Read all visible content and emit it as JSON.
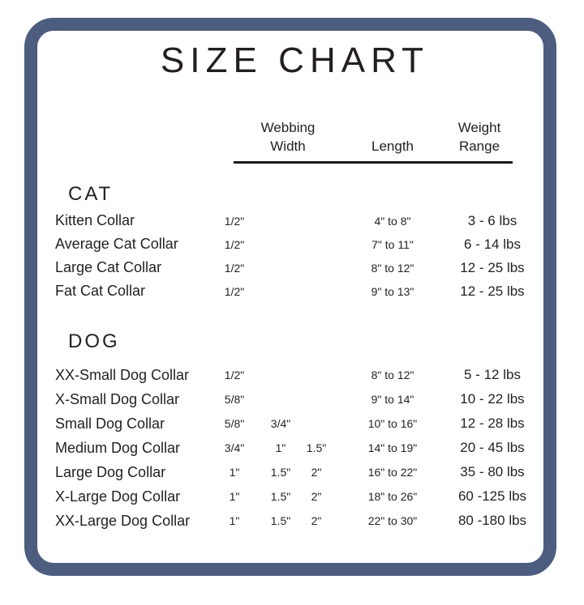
{
  "title": "SIZE CHART",
  "colors": {
    "border": "#4d5d80",
    "text": "#231f20",
    "background": "#ffffff"
  },
  "columns": {
    "webbing_width": [
      "Webbing",
      "Width"
    ],
    "length": "Length",
    "weight_range": [
      "Weight",
      "Range"
    ]
  },
  "sections": [
    {
      "name": "CAT",
      "rows": [
        {
          "label": "Kitten Collar",
          "widths": [
            "1/2\"",
            "",
            ""
          ],
          "length": "4\" to 8\"",
          "weight": "3 - 6 lbs"
        },
        {
          "label": "Average Cat Collar",
          "widths": [
            "1/2\"",
            "",
            ""
          ],
          "length": "7\" to 11\"",
          "weight": "6 - 14 lbs"
        },
        {
          "label": "Large Cat Collar",
          "widths": [
            "1/2\"",
            "",
            ""
          ],
          "length": "8\" to 12\"",
          "weight": "12 - 25 lbs"
        },
        {
          "label": "Fat Cat Collar",
          "widths": [
            "1/2\"",
            "",
            ""
          ],
          "length": "9\" to 13\"",
          "weight": "12 - 25 lbs"
        }
      ]
    },
    {
      "name": "DOG",
      "rows": [
        {
          "label": "XX-Small Dog Collar",
          "widths": [
            "1/2\"",
            "",
            ""
          ],
          "length": "8\" to 12\"",
          "weight": "5 - 12 lbs"
        },
        {
          "label": "X-Small Dog Collar",
          "widths": [
            "5/8\"",
            "",
            ""
          ],
          "length": "9\" to 14\"",
          "weight": "10 - 22 lbs"
        },
        {
          "label": "Small Dog Collar",
          "widths": [
            "5/8\"",
            "3/4\"",
            ""
          ],
          "length": "10\" to 16\"",
          "weight": "12 - 28 lbs"
        },
        {
          "label": "Medium Dog Collar",
          "widths": [
            "3/4\"",
            "1\"",
            "1.5\""
          ],
          "length": "14\" to 19\"",
          "weight": "20 - 45 lbs"
        },
        {
          "label": "Large Dog Collar",
          "widths": [
            "1\"",
            "1.5\"",
            "2\""
          ],
          "length": "16\" to 22\"",
          "weight": "35 - 80 lbs"
        },
        {
          "label": "X-Large Dog Collar",
          "widths": [
            "1\"",
            "1.5\"",
            "2\""
          ],
          "length": "18\" to 26\"",
          "weight": "60 -125 lbs"
        },
        {
          "label": "XX-Large Dog Collar",
          "widths": [
            "1\"",
            "1.5\"",
            "2\""
          ],
          "length": "22\" to 30\"",
          "weight": "80 -180 lbs"
        }
      ]
    }
  ]
}
